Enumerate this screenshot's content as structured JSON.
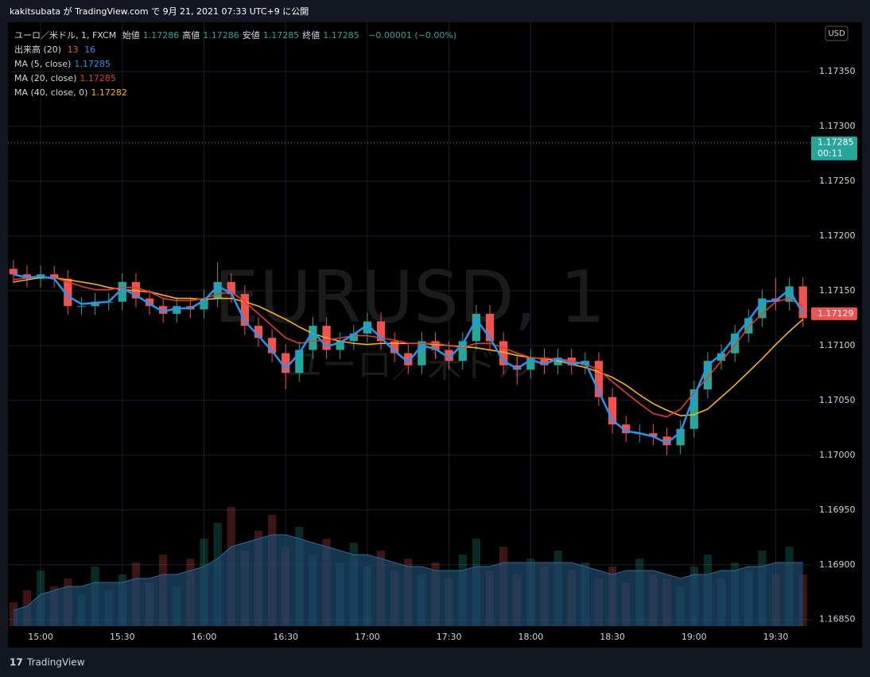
{
  "header": {
    "publish": "kakitsubata が TradingView.com で 9月 21, 2021 07:33 UTC+9 に公開",
    "symbol": "ユーロ／米ドル, 1, FXCM",
    "ohlc": [
      {
        "label": "始値",
        "value": "1.17286"
      },
      {
        "label": "高値",
        "value": "1.17286"
      },
      {
        "label": "安値",
        "value": "1.17285"
      },
      {
        "label": "終値",
        "value": "1.17285"
      }
    ],
    "change": "−0.00001 (−0.00%)"
  },
  "footer": {
    "brand": "TradingView"
  },
  "chart_data": {
    "type": "candlestick",
    "watermark": [
      "EURUSD, 1",
      "ユーロ／米ドル"
    ],
    "currency": "USD",
    "x": [
      "14:50",
      "14:55",
      "15:00",
      "15:05",
      "15:10",
      "15:15",
      "15:20",
      "15:25",
      "15:30",
      "15:35",
      "15:40",
      "15:45",
      "15:50",
      "15:55",
      "16:00",
      "16:05",
      "16:10",
      "16:15",
      "16:20",
      "16:25",
      "16:30",
      "16:35",
      "16:40",
      "16:45",
      "16:50",
      "16:55",
      "17:00",
      "17:05",
      "17:10",
      "17:15",
      "17:20",
      "17:25",
      "17:30",
      "17:35",
      "17:40",
      "17:45",
      "17:50",
      "17:55",
      "18:00",
      "18:05",
      "18:10",
      "18:15",
      "18:20",
      "18:25",
      "18:30",
      "18:35",
      "18:40",
      "18:45",
      "18:50",
      "18:55",
      "19:00",
      "19:05",
      "19:10",
      "19:15",
      "19:20",
      "19:25",
      "19:30",
      "19:35",
      "19:40"
    ],
    "open": [
      1.1717,
      1.17165,
      1.17161,
      1.17165,
      1.17161,
      1.17136,
      1.17136,
      1.1714,
      1.1714,
      1.17158,
      1.17143,
      1.17136,
      1.17129,
      1.17136,
      1.17133,
      1.17143,
      1.17158,
      1.17147,
      1.17118,
      1.17107,
      1.17093,
      1.17075,
      1.17096,
      1.17118,
      1.17096,
      1.17104,
      1.17111,
      1.17122,
      1.17104,
      1.17093,
      1.17082,
      1.17104,
      1.17096,
      1.17086,
      1.17104,
      1.17129,
      1.17104,
      1.17082,
      1.17078,
      1.17089,
      1.17082,
      1.17089,
      1.17082,
      1.17086,
      1.17053,
      1.17028,
      1.1702,
      1.1702,
      1.17017,
      1.17009,
      1.17024,
      1.1706,
      1.17086,
      1.17093,
      1.17111,
      1.17125,
      1.17143,
      1.1714,
      1.17154
    ],
    "high": [
      1.17178,
      1.17173,
      1.17173,
      1.17173,
      1.17169,
      1.17144,
      1.17148,
      1.17148,
      1.17166,
      1.17166,
      1.17151,
      1.17144,
      1.17144,
      1.17144,
      1.17151,
      1.17176,
      1.17166,
      1.17155,
      1.17126,
      1.17115,
      1.17101,
      1.17104,
      1.17126,
      1.17126,
      1.17112,
      1.17119,
      1.1713,
      1.1713,
      1.17112,
      1.17101,
      1.17112,
      1.17112,
      1.17104,
      1.17112,
      1.17137,
      1.17137,
      1.17112,
      1.1709,
      1.17097,
      1.17097,
      1.17097,
      1.17097,
      1.17094,
      1.17094,
      1.17061,
      1.17036,
      1.17028,
      1.17028,
      1.17025,
      1.17032,
      1.17068,
      1.17094,
      1.17101,
      1.17119,
      1.17133,
      1.17151,
      1.17162,
      1.17162,
      1.17162
    ],
    "low": [
      1.17157,
      1.17153,
      1.17153,
      1.17153,
      1.17128,
      1.17128,
      1.17128,
      1.17132,
      1.17132,
      1.17135,
      1.17128,
      1.17121,
      1.17121,
      1.17125,
      1.17125,
      1.17135,
      1.17139,
      1.1711,
      1.17099,
      1.17085,
      1.1706,
      1.17067,
      1.17088,
      1.17088,
      1.17088,
      1.17096,
      1.17103,
      1.17096,
      1.17085,
      1.17074,
      1.17074,
      1.17088,
      1.17078,
      1.17078,
      1.17096,
      1.17096,
      1.17074,
      1.17064,
      1.1707,
      1.17074,
      1.17074,
      1.17074,
      1.17074,
      1.17045,
      1.1702,
      1.17012,
      1.17012,
      1.17009,
      1.17,
      1.17001,
      1.17016,
      1.17052,
      1.17078,
      1.17085,
      1.17103,
      1.17117,
      1.17132,
      1.17132,
      1.17117
    ],
    "close": [
      1.17165,
      1.17161,
      1.17165,
      1.17161,
      1.17136,
      1.17136,
      1.1714,
      1.1714,
      1.17158,
      1.17143,
      1.17136,
      1.17129,
      1.17136,
      1.17133,
      1.17143,
      1.17158,
      1.17147,
      1.17118,
      1.17107,
      1.17093,
      1.17075,
      1.17096,
      1.17118,
      1.17096,
      1.17104,
      1.17111,
      1.17122,
      1.17104,
      1.17093,
      1.17082,
      1.17104,
      1.17096,
      1.17086,
      1.17104,
      1.17129,
      1.17104,
      1.17082,
      1.17078,
      1.17089,
      1.17082,
      1.17089,
      1.17082,
      1.17086,
      1.17053,
      1.17028,
      1.1702,
      1.1702,
      1.17017,
      1.17009,
      1.17024,
      1.1706,
      1.17086,
      1.17093,
      1.17111,
      1.17125,
      1.17143,
      1.1714,
      1.17154,
      1.17125
    ],
    "series": [
      {
        "name": "MA (5, close)",
        "last": "1.17285",
        "color": "#2196f3",
        "width": 2.5,
        "values": [
          1.17165,
          1.17162,
          1.17163,
          1.17161,
          1.17145,
          1.17138,
          1.17139,
          1.1714,
          1.17152,
          1.17146,
          1.17138,
          1.17131,
          1.17134,
          1.17134,
          1.17141,
          1.17154,
          1.17148,
          1.17122,
          1.17109,
          1.17095,
          1.17079,
          1.17093,
          1.17113,
          1.17099,
          1.17103,
          1.1711,
          1.17119,
          1.17107,
          1.17095,
          1.17085,
          1.171,
          1.17097,
          1.17089,
          1.17101,
          1.17124,
          1.17107,
          1.17086,
          1.17079,
          1.17087,
          1.17083,
          1.17088,
          1.17083,
          1.17085,
          1.17058,
          1.17032,
          1.17022,
          1.1702,
          1.17017,
          1.17011,
          1.17021,
          1.17054,
          1.17082,
          1.17092,
          1.17108,
          1.17123,
          1.1714,
          1.17141,
          1.17151,
          1.17129
        ]
      },
      {
        "name": "MA (20, close)",
        "last": "1.17285",
        "color": "#e53935",
        "width": 1.6,
        "values": [
          1.1716,
          1.17162,
          1.17163,
          1.17162,
          1.17158,
          1.17154,
          1.17151,
          1.17151,
          1.17153,
          1.17153,
          1.17149,
          1.17143,
          1.17141,
          1.17141,
          1.17143,
          1.17147,
          1.17149,
          1.1714,
          1.17129,
          1.17118,
          1.17107,
          1.17102,
          1.17104,
          1.17105,
          1.17107,
          1.17109,
          1.17109,
          1.17107,
          1.17105,
          1.17102,
          1.17102,
          1.17102,
          1.171,
          1.17098,
          1.17102,
          1.17102,
          1.17098,
          1.17093,
          1.17089,
          1.17088,
          1.17088,
          1.17086,
          1.17083,
          1.17078,
          1.17067,
          1.17057,
          1.17047,
          1.17038,
          1.17035,
          1.17042,
          1.17057,
          1.17071,
          1.17086,
          1.171,
          1.17117,
          1.17129,
          1.1714,
          1.17143,
          1.17136
        ]
      },
      {
        "name": "MA (40, close, 0)",
        "last": "1.17282",
        "color": "#ffb300",
        "width": 1.6,
        "values": [
          1.17158,
          1.1716,
          1.17162,
          1.17162,
          1.1716,
          1.17158,
          1.17156,
          1.17153,
          1.17151,
          1.1715,
          1.17149,
          1.17146,
          1.17143,
          1.17143,
          1.17142,
          1.17143,
          1.17143,
          1.1714,
          1.17136,
          1.1713,
          1.17124,
          1.17117,
          1.17111,
          1.17107,
          1.17104,
          1.17102,
          1.17101,
          1.17102,
          1.17102,
          1.17102,
          1.17102,
          1.17101,
          1.171,
          1.17099,
          1.17098,
          1.17096,
          1.17094,
          1.17091,
          1.17089,
          1.17088,
          1.17086,
          1.17083,
          1.1708,
          1.17076,
          1.17071,
          1.17064,
          1.17055,
          1.17047,
          1.17041,
          1.17036,
          1.17037,
          1.17042,
          1.17053,
          1.17064,
          1.17076,
          1.17088,
          1.17101,
          1.17113,
          1.17124
        ]
      }
    ],
    "volume": {
      "name": "出来高 (20)",
      "labels": [
        "13",
        "16"
      ],
      "colors": [
        "#ef5350",
        "#2196f3"
      ],
      "values": [
        6,
        9,
        14,
        10,
        12,
        8,
        15,
        9,
        13,
        16,
        11,
        18,
        10,
        17,
        22,
        26,
        30,
        19,
        24,
        28,
        20,
        25,
        18,
        22,
        16,
        21,
        15,
        19,
        14,
        17,
        13,
        16,
        12,
        18,
        22,
        14,
        20,
        13,
        17,
        15,
        19,
        14,
        16,
        12,
        15,
        11,
        17,
        13,
        12,
        10,
        15,
        18,
        12,
        16,
        14,
        19,
        13,
        20,
        13
      ],
      "ma_values": [
        4,
        5,
        8,
        9,
        10,
        10,
        11,
        11,
        11,
        12,
        12,
        13,
        13,
        14,
        15,
        17,
        20,
        21,
        22,
        23,
        23,
        22,
        21,
        20,
        19,
        18,
        18,
        17,
        16,
        15,
        15,
        14,
        14,
        14,
        15,
        15,
        16,
        16,
        16,
        16,
        16,
        16,
        15,
        14,
        13,
        14,
        14,
        14,
        13,
        12,
        13,
        13,
        14,
        14,
        15,
        15,
        16,
        16,
        16
      ]
    },
    "price_tags": [
      {
        "value": 1.17285,
        "countdown": "00:11",
        "color": "#26a69a",
        "dotted": true
      },
      {
        "value": 1.17129,
        "color": "#ef5350"
      }
    ],
    "up_color": "#26a69a",
    "down_color": "#ef5350",
    "ylim": [
      1.16844,
      1.17395
    ],
    "yticks": [
      {
        "value": 1.1735,
        "label": "1.17350"
      },
      {
        "value": 1.173,
        "label": "1.17300"
      },
      {
        "value": 1.1725,
        "label": "1.17250"
      },
      {
        "value": 1.172,
        "label": "1.17200"
      },
      {
        "value": 1.1715,
        "label": "1.17150"
      },
      {
        "value": 1.171,
        "label": "1.17100"
      },
      {
        "value": 1.1705,
        "label": "1.17050"
      },
      {
        "value": 1.17,
        "label": "1.17000"
      },
      {
        "value": 1.1695,
        "label": "1.16950"
      },
      {
        "value": 1.169,
        "label": "1.16900"
      },
      {
        "value": 1.1685,
        "label": "1.16850"
      }
    ],
    "xlim": [
      "14:48",
      "19:43"
    ],
    "xticks": [
      "15:00",
      "15:30",
      "16:00",
      "16:30",
      "17:00",
      "17:30",
      "18:00",
      "18:30",
      "19:00",
      "19:30"
    ],
    "grid": true
  }
}
